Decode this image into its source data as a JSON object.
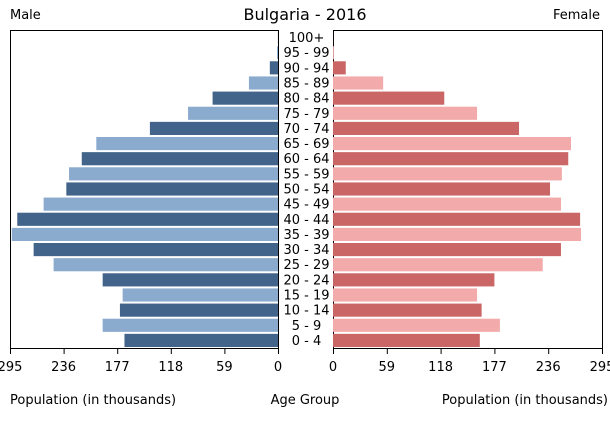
{
  "chart_data": {
    "type": "bar",
    "orientation": "horizontal",
    "title": "Bulgaria - 2016",
    "left_label": "Male",
    "right_label": "Female",
    "center_label": "Age Group",
    "xlabel_left": "Population (in thousands)",
    "xlabel_right": "Population (in thousands)",
    "xlim": [
      0,
      295
    ],
    "xticks_left": [
      "295",
      "236",
      "177",
      "118",
      "59",
      "0"
    ],
    "xticks_right": [
      "0",
      "59",
      "118",
      "177",
      "236",
      "295"
    ],
    "tick_values": [
      295,
      236,
      177,
      118,
      59,
      0
    ],
    "categories": [
      "100+",
      "95 - 99",
      "90 - 94",
      "85 - 89",
      "80 - 84",
      "75 - 79",
      "70 - 74",
      "65 - 69",
      "60 - 64",
      "55 - 59",
      "50 - 54",
      "45 - 49",
      "40 - 44",
      "35 - 39",
      "30 - 34",
      "25 - 29",
      "20 - 24",
      "15 - 19",
      "10 - 14",
      "5 - 9",
      "0 - 4"
    ],
    "series": [
      {
        "name": "Male",
        "values": [
          0.1,
          1,
          9,
          32,
          72,
          99,
          141,
          200,
          216,
          230,
          233,
          258,
          287,
          293,
          269,
          247,
          193,
          171,
          174,
          193,
          169
        ]
      },
      {
        "name": "Female",
        "values": [
          0.1,
          1,
          14,
          55,
          122,
          158,
          204,
          261,
          258,
          251,
          238,
          250,
          271,
          272,
          250,
          230,
          177,
          158,
          163,
          183,
          161
        ]
      }
    ],
    "colors": {
      "male_dark": "#42648a",
      "male_light": "#8aaace",
      "female_dark": "#ca6766",
      "female_light": "#f2aaaa"
    }
  }
}
